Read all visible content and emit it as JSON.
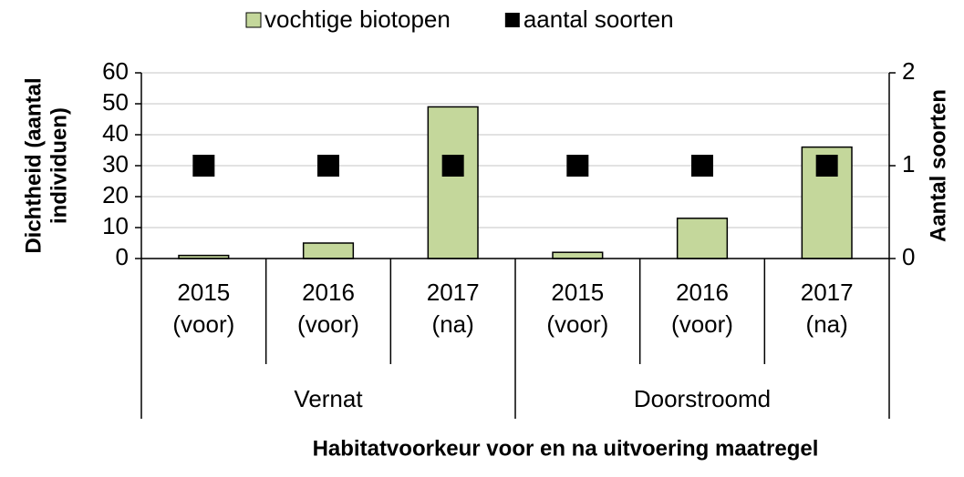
{
  "chart_data": {
    "type": "bar",
    "categories": [
      [
        "2015",
        "(voor)"
      ],
      [
        "2016",
        "(voor)"
      ],
      [
        "2017",
        "(na)"
      ],
      [
        "2015",
        "(voor)"
      ],
      [
        "2016",
        "(voor)"
      ],
      [
        "2017",
        "(na)"
      ]
    ],
    "groups": [
      "Vernat",
      "Doorstroomd"
    ],
    "series": [
      {
        "name": "vochtige biotopen",
        "type": "bar",
        "color": "#c4d79b",
        "values": [
          1,
          5,
          49,
          2,
          13,
          36
        ]
      },
      {
        "name": "aantal soorten",
        "type": "scatter",
        "axis": "y2",
        "color": "#000000",
        "values": [
          1,
          1,
          1,
          1,
          1,
          1
        ]
      }
    ],
    "ylabel": [
      "Dichtheid (aantal",
      "individuen)"
    ],
    "y2label": "Aantal soorten",
    "xlabel": "Habitatvoorkeur voor en na uitvoering maatregel",
    "ylim": [
      0,
      60
    ],
    "yticks": [
      0,
      10,
      20,
      30,
      40,
      50,
      60
    ],
    "y2lim": [
      0,
      2
    ],
    "y2ticks": [
      0,
      1,
      2
    ],
    "grid": true,
    "legend": "top"
  }
}
